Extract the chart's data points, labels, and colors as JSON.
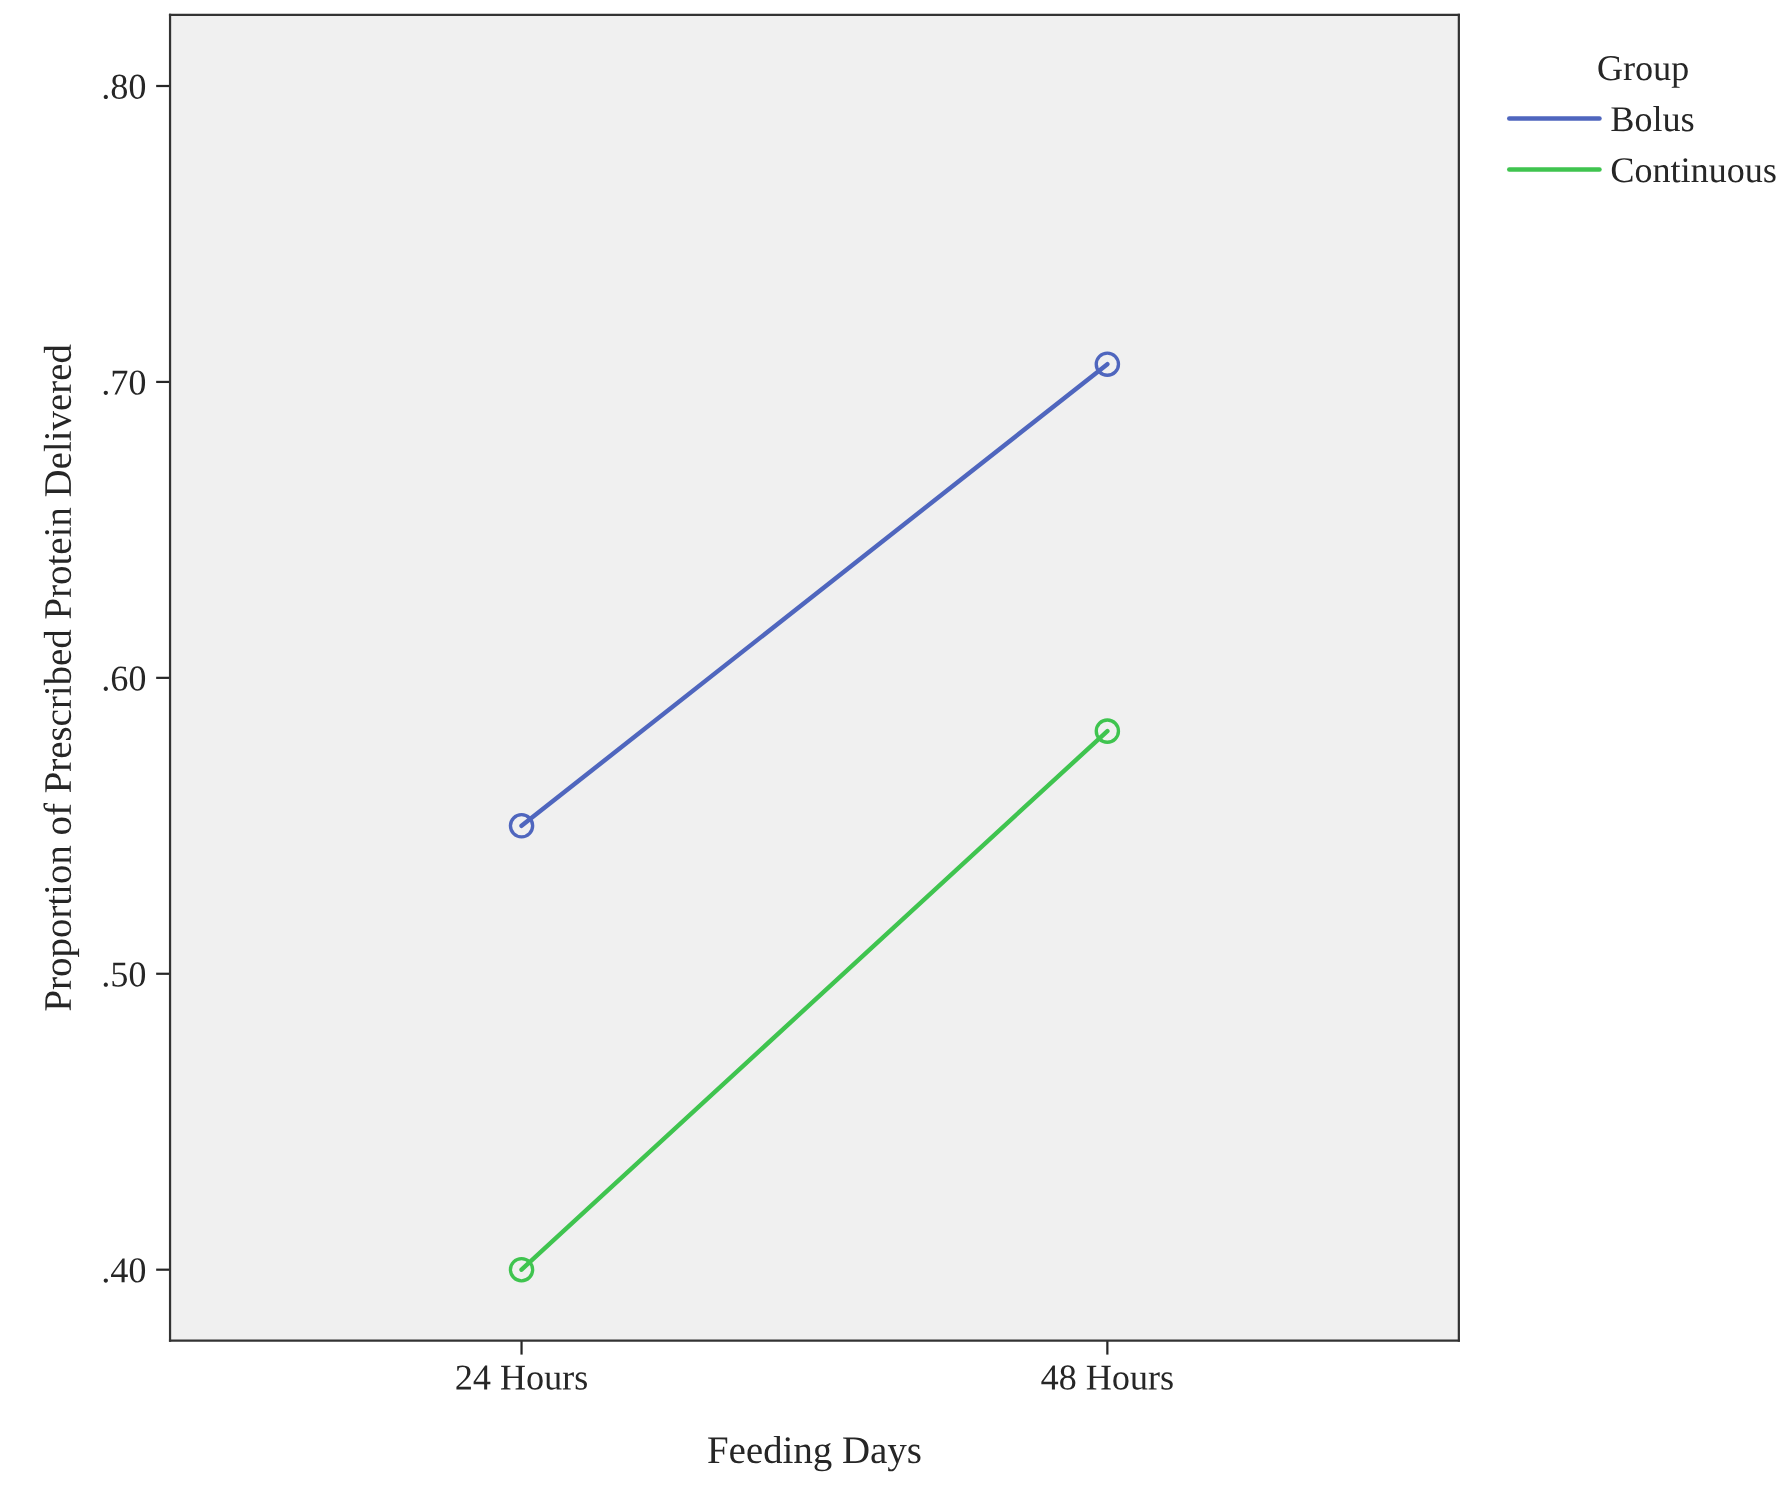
{
  "chart_data": {
    "type": "line",
    "xlabel": "Feeding Days",
    "ylabel": "Proportion of Prescribed Protein Delivered",
    "legend_title": "Group",
    "legend": "top right",
    "marker": "circle",
    "line_style": "solid",
    "grid": false,
    "categories": [
      "24 Hours",
      "48 Hours"
    ],
    "ylim": [
      0.376,
      0.824
    ],
    "yticks": [
      {
        "value": 0.4,
        "label": ".40"
      },
      {
        "value": 0.5,
        "label": ".50"
      },
      {
        "value": 0.6,
        "label": ".60"
      },
      {
        "value": 0.7,
        "label": ".70"
      },
      {
        "value": 0.8,
        "label": ".80"
      }
    ],
    "series": [
      {
        "name": "Bolus",
        "color": "#4f66be",
        "values": [
          0.55,
          0.706
        ]
      },
      {
        "name": "Continuous",
        "color": "#3fc44f",
        "values": [
          0.4,
          0.582
        ]
      }
    ]
  }
}
